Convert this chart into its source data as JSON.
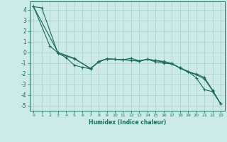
{
  "xlabel": "Humidex (Indice chaleur)",
  "background_color": "#cceae7",
  "grid_color": "#aed4d0",
  "line_color": "#1a6b5a",
  "xlim": [
    -0.5,
    23.5
  ],
  "ylim": [
    -5.5,
    4.8
  ],
  "xticks": [
    0,
    1,
    2,
    3,
    4,
    5,
    6,
    7,
    8,
    9,
    10,
    11,
    12,
    13,
    14,
    15,
    16,
    17,
    18,
    19,
    20,
    21,
    22,
    23
  ],
  "yticks": [
    -5,
    -4,
    -3,
    -2,
    -1,
    0,
    1,
    2,
    3,
    4
  ],
  "series": {
    "line1": {
      "x": [
        0,
        1,
        3,
        5,
        7,
        8,
        9,
        10,
        11,
        12,
        13,
        14,
        15,
        16,
        17,
        18,
        19,
        20,
        21,
        22,
        23
      ],
      "y": [
        4.3,
        4.2,
        -0.1,
        -0.6,
        -1.5,
        -0.9,
        -0.6,
        -0.65,
        -0.7,
        -0.55,
        -0.8,
        -0.65,
        -0.9,
        -1.0,
        -1.1,
        -1.45,
        -1.8,
        -2.4,
        -3.5,
        -3.7,
        -4.85
      ]
    },
    "line2": {
      "x": [
        0,
        2,
        3,
        4,
        5,
        6,
        7,
        8,
        9,
        10,
        11,
        12,
        13,
        14,
        15,
        16,
        17,
        18,
        19,
        20,
        21,
        22,
        23
      ],
      "y": [
        4.3,
        0.6,
        -0.05,
        -0.5,
        -1.2,
        -1.4,
        -1.55,
        -0.85,
        -0.6,
        -0.65,
        -0.7,
        -0.75,
        -0.8,
        -0.65,
        -0.75,
        -0.85,
        -1.05,
        -1.5,
        -1.85,
        -2.1,
        -2.5,
        -3.6,
        -4.85
      ]
    },
    "line3": {
      "x": [
        0,
        3,
        5,
        7,
        8,
        9,
        10,
        11,
        12,
        13,
        14,
        15,
        16,
        17,
        18,
        19,
        20,
        21,
        22,
        23
      ],
      "y": [
        4.3,
        0.0,
        -0.55,
        -1.55,
        -0.9,
        -0.62,
        -0.65,
        -0.7,
        -0.75,
        -0.85,
        -0.65,
        -0.78,
        -0.9,
        -1.05,
        -1.45,
        -1.8,
        -2.05,
        -2.35,
        -3.55,
        -4.85
      ]
    }
  }
}
